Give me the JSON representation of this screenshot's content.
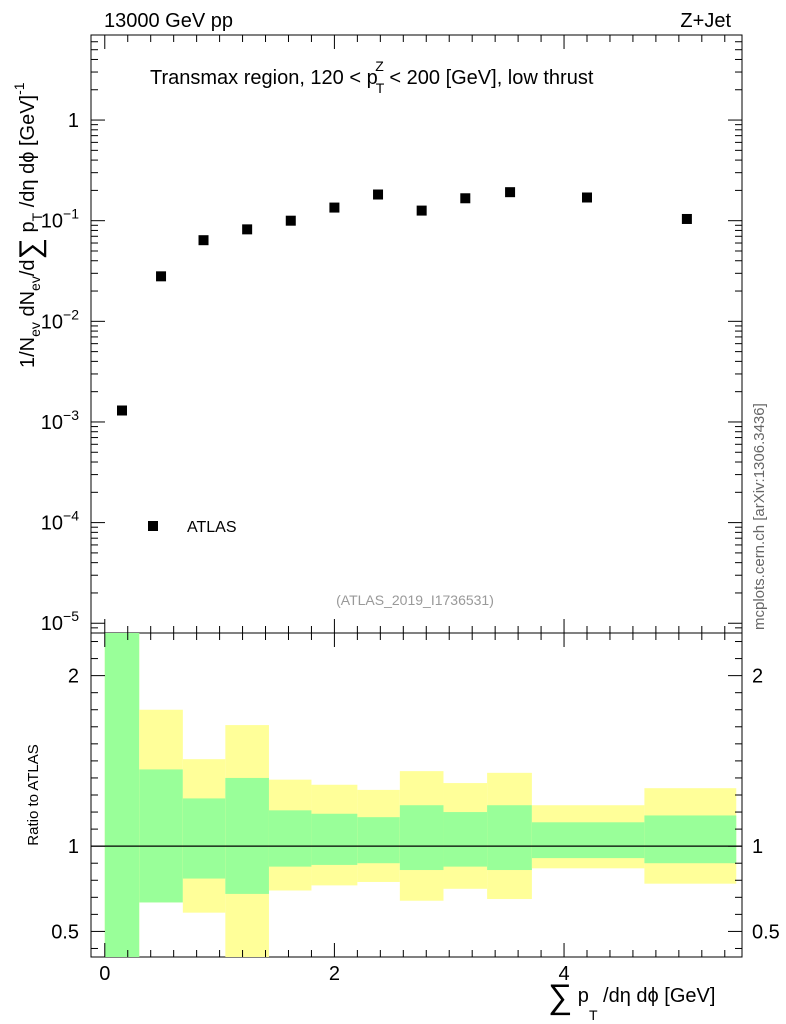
{
  "header": {
    "left": "13000 GeV pp",
    "right": "Z+Jet"
  },
  "watermark": "mcplots.cern.ch [arXiv:1306.3436]",
  "chart_data": [
    {
      "type": "scatter",
      "panel": "main",
      "title": {
        "pre": "Transmax region, 120 < p",
        "sup": "Z",
        "sub": "T",
        "post": " < 200 [GeV], low thrust"
      },
      "ylabel": {
        "text": "1/N_ev dN_ev/d Σ p_T /dη dφ [GeV]^-1"
      },
      "yscale": "log",
      "ylim": [
        8e-06,
        7
      ],
      "xlim": [
        -0.12,
        5.55
      ],
      "ytick_labels": [
        {
          "value": 1,
          "base": "1",
          "exp": ""
        },
        {
          "value": 0.1,
          "base": "10",
          "exp": "−1"
        },
        {
          "value": 0.01,
          "base": "10",
          "exp": "−2"
        },
        {
          "value": 0.001,
          "base": "10",
          "exp": "−3"
        },
        {
          "value": 0.0001,
          "base": "10",
          "exp": "−4"
        },
        {
          "value": 1e-05,
          "base": "10",
          "exp": "−5"
        }
      ],
      "series": [
        {
          "name": "ATLAS",
          "x": [
            0.15,
            0.49,
            0.86,
            1.24,
            1.62,
            2.0,
            2.38,
            2.76,
            3.14,
            3.53,
            4.2,
            5.07
          ],
          "y": [
            0.0013,
            0.028,
            0.064,
            0.082,
            0.1,
            0.135,
            0.182,
            0.126,
            0.167,
            0.192,
            0.17,
            0.104
          ]
        }
      ],
      "legend": {
        "label": "ATLAS",
        "placement": "bottom-left"
      },
      "analysis_label": "(ATLAS_2019_I1736531)"
    },
    {
      "type": "area",
      "panel": "ratio",
      "ylabel": "Ratio to ATLAS",
      "ylim": [
        0.35,
        2.25
      ],
      "ytick_labels": [
        "0.5",
        "1",
        "2"
      ],
      "ytick_values": [
        0.5,
        1,
        2
      ],
      "reference_line": 1,
      "xlabel": "Σ p_T /dη dφ [GeV]",
      "xtick_labels": [
        "0",
        "2",
        "4"
      ],
      "xtick_values": [
        0,
        2,
        4
      ],
      "bins": {
        "edges": [
          0.0,
          0.3,
          0.68,
          1.05,
          1.43,
          1.8,
          2.2,
          2.57,
          2.95,
          3.33,
          3.72,
          4.7,
          5.5
        ],
        "stat_up": [
          2.3,
          1.45,
          1.28,
          1.4,
          1.21,
          1.19,
          1.17,
          1.24,
          1.2,
          1.24,
          1.14,
          1.18
        ],
        "stat_low": [
          0.3,
          0.67,
          0.81,
          0.72,
          0.88,
          0.89,
          0.9,
          0.86,
          0.88,
          0.86,
          0.93,
          0.9
        ],
        "total_up": [
          2.3,
          1.8,
          1.51,
          1.71,
          1.39,
          1.36,
          1.33,
          1.44,
          1.37,
          1.43,
          1.24,
          1.34
        ],
        "total_low": [
          0.3,
          0.67,
          0.61,
          0.35,
          0.74,
          0.77,
          0.79,
          0.68,
          0.75,
          0.69,
          0.87,
          0.78
        ]
      },
      "colors": {
        "stat": "#99ff99",
        "total": "#ffff99"
      }
    }
  ]
}
